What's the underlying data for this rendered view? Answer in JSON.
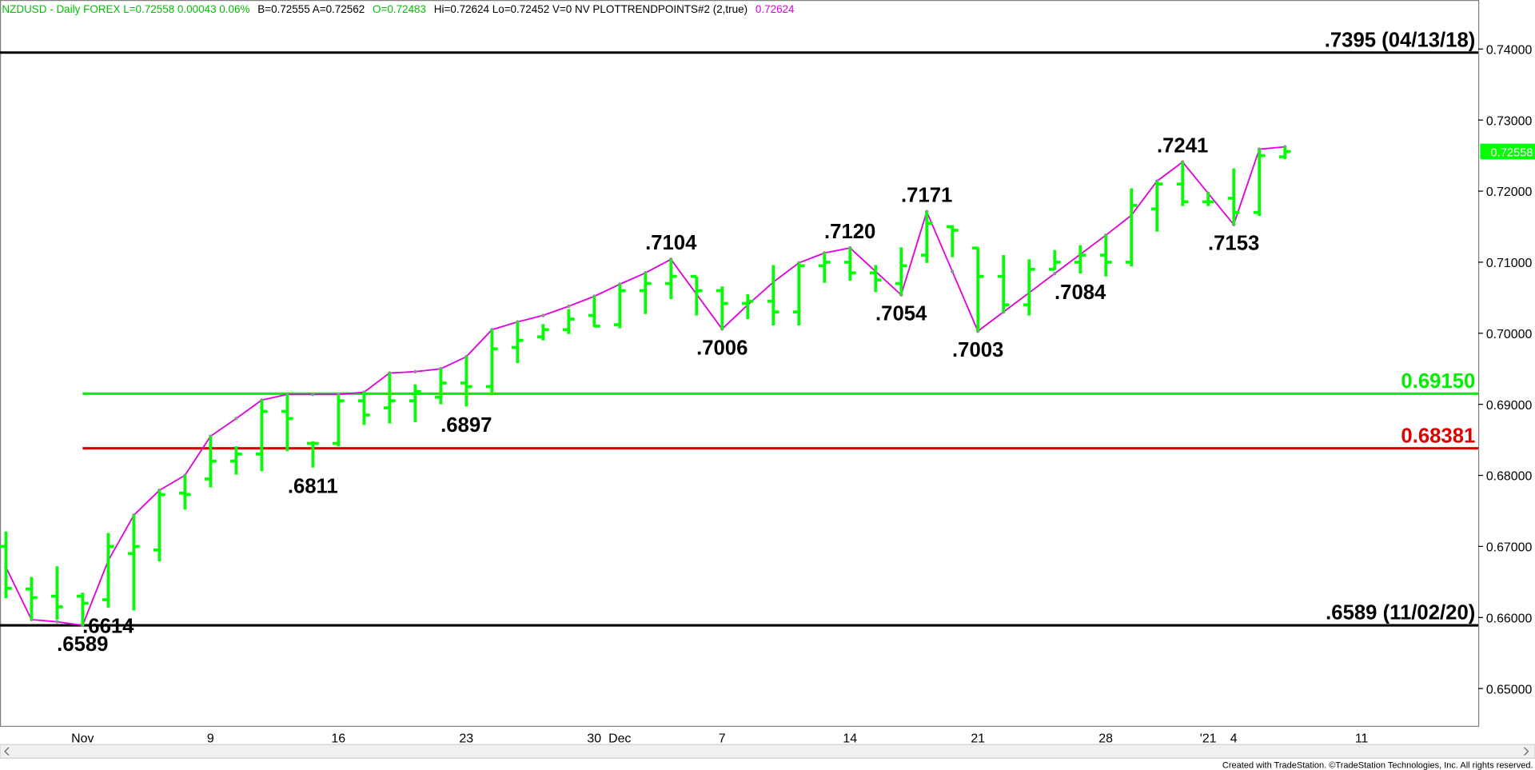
{
  "chart_data": {
    "type": "ohlc",
    "header": [
      {
        "text": "NZDUSD - Daily  FOREX  L=0.72558  0.00043  0.06%",
        "color": "#00c000"
      },
      {
        "text": "B=0.72555  A=0.72562",
        "color": "#000000"
      },
      {
        "text": "O=0.72483",
        "color": "#00c000"
      },
      {
        "text": "Hi=0.72624  Lo=0.72452  V=0  NV  PLOTTRENDPOINTS#2 (2,true)",
        "color": "#000000"
      },
      {
        "text": "0.72624",
        "color": "#e000e0"
      }
    ],
    "footer": "Created with TradeStation. ©TradeStation Technologies, Inc. All rights reserved.",
    "categories": [
      null,
      null,
      null,
      "Nov",
      null,
      null,
      null,
      null,
      "9",
      null,
      null,
      null,
      null,
      "16",
      null,
      null,
      null,
      null,
      "23",
      null,
      null,
      null,
      null,
      "30",
      "Dec",
      null,
      null,
      null,
      "7",
      null,
      null,
      null,
      null,
      "14",
      null,
      null,
      null,
      null,
      "21",
      null,
      null,
      null,
      null,
      "28",
      null,
      null,
      null,
      "'21",
      "4",
      null,
      null,
      null,
      null,
      "11",
      null,
      null,
      null,
      null
    ],
    "color": "#00ff00",
    "open": [
      0.67,
      0.664,
      0.663,
      0.663,
      0.6625,
      0.669,
      0.6695,
      0.6775,
      0.6795,
      0.682,
      0.683,
      0.689,
      0.6845,
      0.6845,
      0.6905,
      0.6895,
      0.6905,
      0.691,
      0.693,
      0.6925,
      0.698,
      0.6995,
      0.7005,
      0.7025,
      0.7012,
      0.706,
      0.707,
      0.708,
      0.706,
      0.7042,
      0.7045,
      0.703,
      0.7095,
      0.71,
      0.7085,
      0.707,
      0.711,
      0.715,
      0.712,
      0.708,
      0.704,
      0.709,
      0.71,
      0.711,
      0.71,
      0.7175,
      0.721,
      0.7185,
      0.719,
      0.717,
      0.72483,
      null,
      null,
      null,
      null,
      null,
      null,
      null
    ],
    "high": [
      0.6721,
      0.6657,
      0.6672,
      0.6635,
      0.6719,
      0.6744,
      0.6779,
      0.68,
      0.6855,
      0.6841,
      0.6906,
      0.6914,
      0.6848,
      0.6914,
      0.6917,
      0.6944,
      0.6928,
      0.695,
      0.6967,
      0.7005,
      0.7016,
      0.7013,
      0.7034,
      0.7052,
      0.7069,
      0.7085,
      0.7104,
      0.708,
      0.7066,
      0.7055,
      0.7096,
      0.7099,
      0.7113,
      0.712,
      0.7096,
      0.7121,
      0.7171,
      0.7152,
      0.7121,
      0.711,
      0.7104,
      0.7117,
      0.7124,
      0.7138,
      0.7204,
      0.7214,
      0.7241,
      0.7198,
      0.7232,
      0.7259,
      0.72624,
      null,
      null,
      null,
      null,
      null,
      null,
      null
    ],
    "low": [
      0.6627,
      0.6597,
      0.6597,
      0.6589,
      0.6614,
      0.661,
      0.6679,
      0.6752,
      0.6783,
      0.6801,
      0.6806,
      0.6834,
      0.6811,
      0.6841,
      0.6871,
      0.6873,
      0.6875,
      0.69,
      0.6897,
      0.6913,
      0.6958,
      0.699,
      0.6999,
      0.7009,
      0.7007,
      0.7027,
      0.7048,
      0.7025,
      0.7006,
      0.702,
      0.7011,
      0.7011,
      0.7071,
      0.7074,
      0.7058,
      0.7054,
      0.7099,
      0.7107,
      0.7003,
      0.703,
      0.7025,
      0.7089,
      0.7084,
      0.708,
      0.7094,
      0.7143,
      0.7179,
      0.7179,
      0.7153,
      0.7165,
      0.72452,
      null,
      null,
      null,
      null,
      null,
      null,
      null
    ],
    "close": [
      0.6641,
      0.6628,
      0.6615,
      0.662,
      0.67,
      0.67,
      0.6773,
      0.6773,
      0.682,
      0.683,
      0.689,
      0.688,
      0.6845,
      0.6905,
      0.6885,
      0.6905,
      0.6918,
      0.693,
      0.6925,
      0.6978,
      0.699,
      0.7005,
      0.702,
      0.701,
      0.706,
      0.707,
      0.708,
      0.706,
      0.7042,
      0.7045,
      0.703,
      0.7095,
      0.71,
      0.7085,
      0.7075,
      0.7095,
      0.7155,
      0.7145,
      0.708,
      0.704,
      0.709,
      0.71,
      0.711,
      0.71,
      0.718,
      0.721,
      0.7185,
      0.7185,
      0.717,
      0.725,
      0.72558,
      null,
      null,
      null,
      null,
      null,
      null,
      null
    ],
    "trend_line": {
      "color": "#e000e0",
      "values": [
        0.6671,
        0.6597,
        0.6594,
        0.6589,
        0.668,
        0.6744,
        0.6779,
        0.68,
        0.6855,
        0.688,
        0.6906,
        0.6914,
        0.6914,
        0.6914,
        0.6917,
        0.6944,
        0.6946,
        0.695,
        0.6967,
        0.7005,
        0.7016,
        0.7025,
        0.7038,
        0.7052,
        0.7069,
        0.7085,
        0.7104,
        0.7055,
        0.7006,
        0.704,
        0.7072,
        0.7099,
        0.7113,
        0.712,
        0.7087,
        0.7054,
        0.7171,
        0.7087,
        0.7003,
        0.703,
        0.7057,
        0.7084,
        0.7111,
        0.7138,
        0.7166,
        0.7214,
        0.7241,
        0.7197,
        0.7153,
        0.7259,
        0.72624,
        null,
        null,
        null,
        null,
        null,
        null,
        null
      ]
    },
    "swing_labels": [
      null,
      null,
      null,
      ".6589",
      ".6614",
      null,
      null,
      null,
      null,
      null,
      null,
      null,
      ".6811",
      null,
      null,
      null,
      null,
      null,
      ".6897",
      null,
      null,
      null,
      null,
      null,
      null,
      null,
      ".7104",
      null,
      ".7006",
      null,
      null,
      null,
      null,
      ".7120",
      null,
      ".7054",
      ".7171",
      null,
      ".7003",
      null,
      null,
      null,
      ".7084",
      null,
      null,
      null,
      ".7241",
      null,
      ".7153",
      null,
      null,
      null,
      null,
      null,
      null,
      null,
      null,
      null
    ],
    "levels": [
      {
        "value": 0.7395,
        "label": ".7395 (04/13/18)",
        "color": "#000000"
      },
      {
        "value": 0.6915,
        "label": "0.69150",
        "color": "#00ee00"
      },
      {
        "value": 0.68381,
        "label": "0.68381",
        "color": "#e00000"
      },
      {
        "value": 0.6589,
        "label": ".6589 (11/02/20)",
        "color": "#000000"
      }
    ],
    "price_marker": {
      "value": 0.72558,
      "label": "0.72558",
      "color": "#00ff00"
    },
    "ylim": [
      0.64475,
      0.7469
    ],
    "yticks": [
      {
        "value": 0.65,
        "label": "0.65000"
      },
      {
        "value": 0.66,
        "label": "0.66000"
      },
      {
        "value": 0.67,
        "label": "0.67000"
      },
      {
        "value": 0.68,
        "label": "0.68000"
      },
      {
        "value": 0.69,
        "label": "0.69000"
      },
      {
        "value": 0.7,
        "label": "0.70000"
      },
      {
        "value": 0.71,
        "label": "0.71000"
      },
      {
        "value": 0.72,
        "label": "0.72000"
      },
      {
        "value": 0.73,
        "label": "0.73000"
      },
      {
        "value": 0.74,
        "label": "0.74000"
      }
    ]
  }
}
